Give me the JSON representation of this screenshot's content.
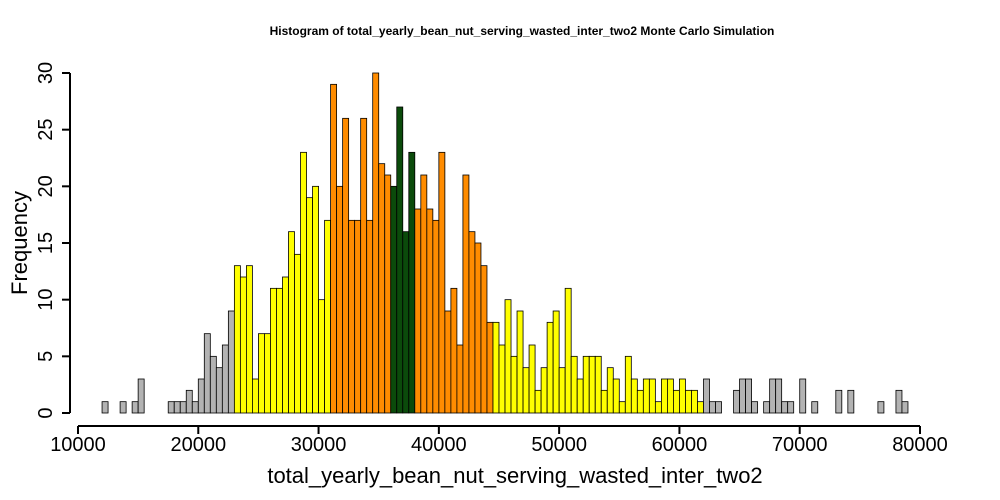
{
  "chart_data": {
    "type": "bar",
    "title": "Histogram of  total_yearly_bean_nut_serving_wasted_inter_two2  Monte Carlo Simulation",
    "xlabel": "total_yearly_bean_nut_serving_wasted_inter_two2",
    "ylabel": "Frequency",
    "xlim": [
      10000,
      80000
    ],
    "ylim": [
      0,
      30
    ],
    "xticks": [
      "10000",
      "20000",
      "30000",
      "40000",
      "50000",
      "60000",
      "70000",
      "80000"
    ],
    "yticks": [
      "0",
      "5",
      "10",
      "15",
      "20",
      "25",
      "30"
    ],
    "bin_start": 12000,
    "bin_width": 500,
    "values": [
      1,
      0,
      0,
      1,
      0,
      1,
      3,
      0,
      0,
      0,
      0,
      1,
      1,
      1,
      2,
      1,
      3,
      7,
      5,
      4,
      6,
      9,
      13,
      12,
      13,
      3,
      7,
      7,
      11,
      11,
      12,
      16,
      14,
      23,
      19,
      20,
      10,
      17,
      29,
      20,
      26,
      17,
      17,
      26,
      17,
      30,
      22,
      21,
      20,
      27,
      16,
      23,
      18,
      21,
      18,
      17,
      23,
      9,
      11,
      6,
      21,
      16,
      15,
      13,
      8,
      8,
      6,
      10,
      5,
      9,
      4,
      6,
      2,
      4,
      8,
      9,
      4,
      11,
      5,
      3,
      5,
      5,
      5,
      2,
      4,
      3,
      1,
      5,
      3,
      2,
      3,
      3,
      1,
      3,
      3,
      2,
      3,
      2,
      2,
      1,
      3,
      1,
      1,
      0,
      0,
      2,
      3,
      3,
      1,
      0,
      1,
      3,
      3,
      1,
      1,
      0,
      3,
      0,
      1,
      0,
      0,
      0,
      2,
      0,
      2,
      0,
      0,
      0,
      0,
      1,
      0,
      0,
      2,
      1
    ],
    "colors": {
      "outer": "#b3b3b3",
      "mid": "#ffff00",
      "inner": "#ff8c00",
      "center": "#0b4b0b"
    },
    "color_bands": [
      {
        "from": 10000,
        "to": 23000,
        "color": "outer"
      },
      {
        "from": 23000,
        "to": 31000,
        "color": "mid"
      },
      {
        "from": 31000,
        "to": 36000,
        "color": "inner"
      },
      {
        "from": 36000,
        "to": 38000,
        "color": "center"
      },
      {
        "from": 38000,
        "to": 44500,
        "color": "inner"
      },
      {
        "from": 44500,
        "to": 62000,
        "color": "mid"
      },
      {
        "from": 62000,
        "to": 82000,
        "color": "outer"
      }
    ],
    "grid": false,
    "legend": "none"
  }
}
